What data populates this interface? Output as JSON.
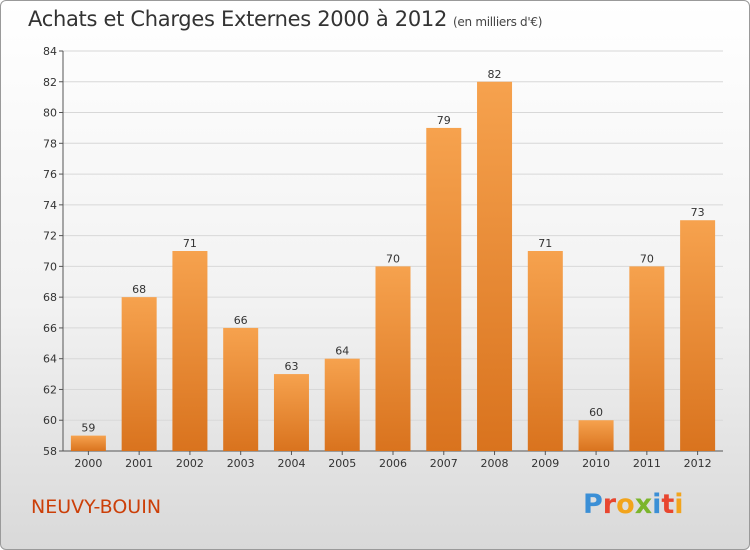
{
  "header": {
    "title": "Achats et Charges Externes 2000 à 2012",
    "subtitle": "(en milliers d'€)"
  },
  "footer": {
    "city": "NEUVY-BOUIN",
    "logo_letters": [
      "P",
      "r",
      "o",
      "x",
      "i",
      "t",
      "i"
    ],
    "logo_colors": [
      "#3b8fd6",
      "#e8462f",
      "#f2a41c",
      "#7bb52b",
      "#3b8fd6",
      "#e8462f",
      "#f2a41c"
    ]
  },
  "colors": {
    "bar_light": "#f6a24e",
    "bar_dark": "#d9731e",
    "grid": "#d8d8d8",
    "axis": "#555555"
  },
  "chart_data": {
    "type": "bar",
    "title": "Achats et Charges Externes 2000 à 2012",
    "subtitle": "(en milliers d'€)",
    "categories": [
      "2000",
      "2001",
      "2002",
      "2003",
      "2004",
      "2005",
      "2006",
      "2007",
      "2008",
      "2009",
      "2010",
      "2011",
      "2012"
    ],
    "values": [
      59,
      68,
      71,
      66,
      63,
      64,
      70,
      79,
      82,
      71,
      60,
      70,
      73
    ],
    "ylim": [
      58,
      84
    ],
    "yticks": [
      58,
      60,
      62,
      64,
      66,
      68,
      70,
      72,
      74,
      76,
      78,
      80,
      82,
      84
    ],
    "grid": true
  }
}
